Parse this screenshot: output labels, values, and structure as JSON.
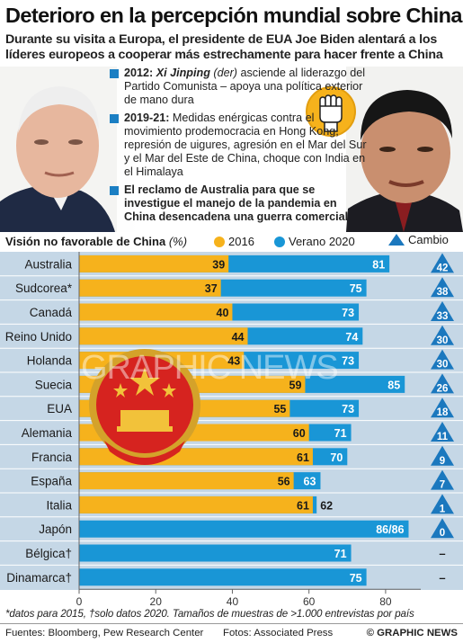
{
  "header": {
    "title": "Deterioro en la percepción mundial sobre China",
    "subtitle": "Durante su visita a Europa, el presidente de EUA Joe Biden alentará a los líderes europeos a cooperar más estrechamente para hacer frente a China"
  },
  "timeline": [
    {
      "year": "2012:",
      "lead": "Xi Jinping",
      "note": "(der)",
      "text": " asciende al liderazgo del Partido Comunista – apoya una política exterior de mano dura"
    },
    {
      "year": "2019-21:",
      "text": " Medidas enérgicas contra el movimiento prodemocracia en Hong Kong, represión de uigures, agresión en el Mar del Sur y el Mar del Este de China, choque con India en el Himalaya"
    },
    {
      "text": "El reclamo de Australia para que se investigue el manejo de la pandemia en China desencadena una guerra comercial"
    }
  ],
  "colors": {
    "y2016": "#f6b21c",
    "y2020": "#1996d6",
    "change": "#1b78be",
    "chart_bg": "#c5d7e6",
    "row_line": "#ffffff",
    "accent_square": "#1b7fc3"
  },
  "chart_data": {
    "type": "bar",
    "title": "Visión no favorable de China",
    "unit": "(%)",
    "legend": [
      "2016",
      "Verano 2020",
      "Cambio"
    ],
    "categories": [
      "Australia",
      "Sudcorea*",
      "Canadá",
      "Reino Unido",
      "Holanda",
      "Suecia",
      "EUA",
      "Alemania",
      "Francia",
      "España",
      "Italia",
      "Japón",
      "Bélgica†",
      "Dinamarca†"
    ],
    "series": [
      {
        "name": "2016",
        "values": [
          39,
          37,
          40,
          44,
          43,
          59,
          55,
          60,
          61,
          56,
          61,
          86,
          null,
          null
        ]
      },
      {
        "name": "Verano 2020",
        "values": [
          81,
          75,
          73,
          74,
          73,
          85,
          73,
          71,
          70,
          63,
          62,
          86,
          71,
          75
        ]
      }
    ],
    "labels_2016": [
      "39",
      "37",
      "40",
      "44",
      "43",
      "59",
      "55",
      "60",
      "61",
      "56",
      "61",
      "",
      "",
      ""
    ],
    "labels_2020": [
      "81",
      "75",
      "73",
      "74",
      "73",
      "85",
      "73",
      "71",
      "70",
      "63",
      "62",
      "86/86",
      "71",
      "75"
    ],
    "change": [
      "42",
      "38",
      "33",
      "30",
      "30",
      "26",
      "18",
      "11",
      "9",
      "7",
      "1",
      "0",
      "–",
      "–"
    ],
    "xticks": [
      "0",
      "20",
      "40",
      "60",
      "80"
    ],
    "xlim": [
      0,
      88
    ]
  },
  "footnote": "*datos para 2015, †solo datos 2020. Tamaños de muestras de >1.000 entrevistas por país",
  "footer": {
    "sources": "Fuentes: Bloomberg, Pew Research Center",
    "photos": "Fotos: Associated Press",
    "brand": "© GRAPHIC NEWS"
  },
  "watermark": "GRAPHIC NEWS"
}
